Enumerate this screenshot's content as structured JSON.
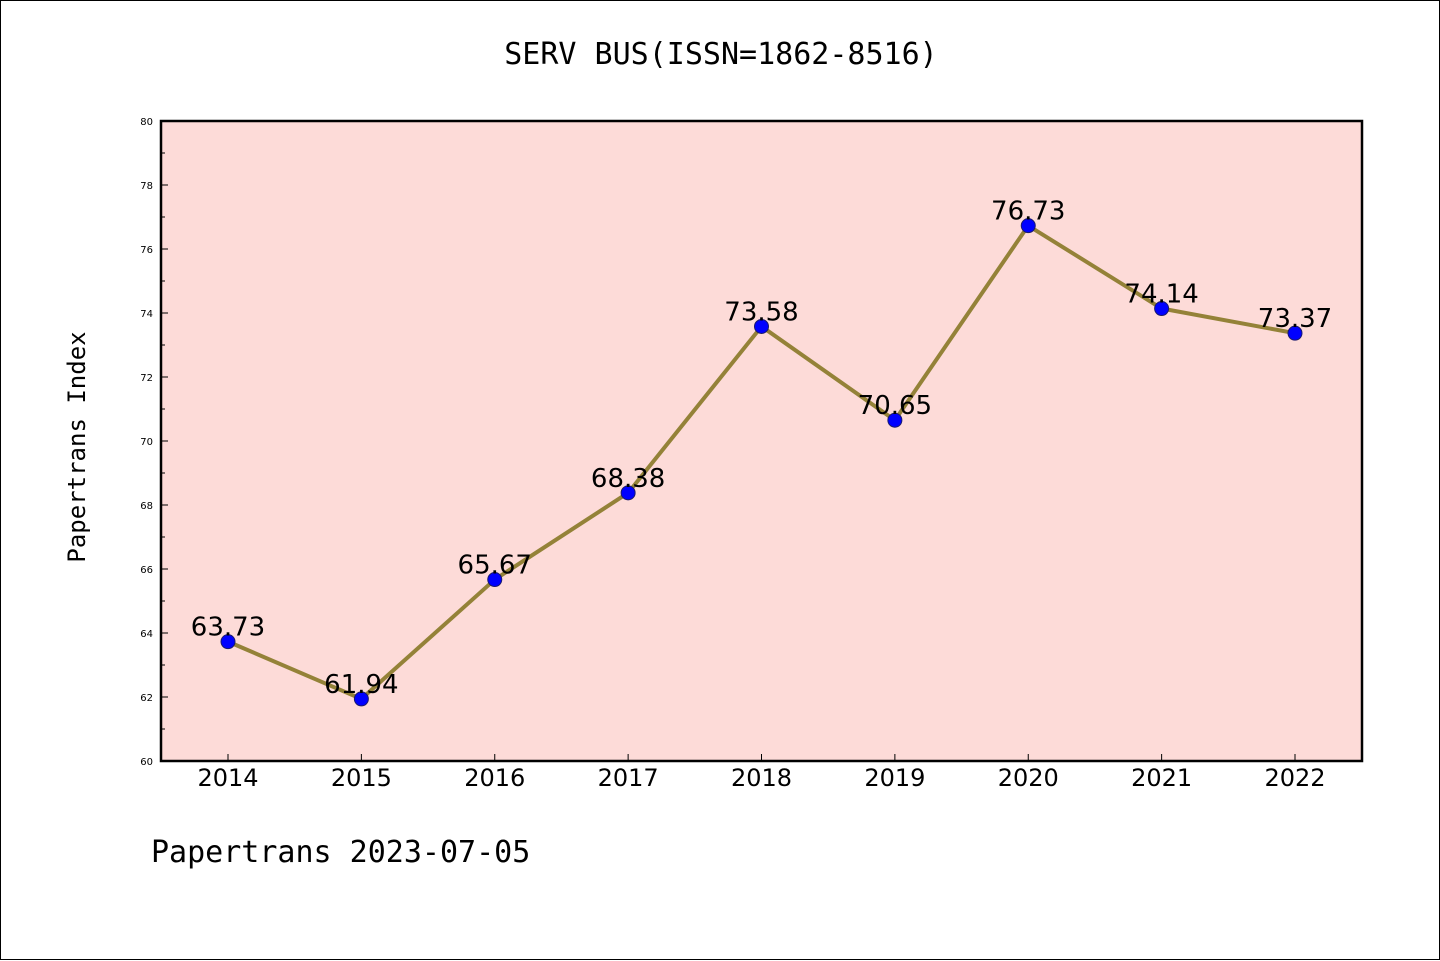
{
  "chart_data": {
    "type": "line",
    "title": "SERV BUS(ISSN=1862-8516)",
    "xlabel": "",
    "ylabel": "Papertrans Index",
    "categories": [
      "2014",
      "2015",
      "2016",
      "2017",
      "2018",
      "2019",
      "2020",
      "2021",
      "2022"
    ],
    "values": [
      63.73,
      61.94,
      65.67,
      68.38,
      73.58,
      70.65,
      76.73,
      74.14,
      73.37
    ],
    "data_labels": [
      "63.73",
      "61.94",
      "65.67",
      "68.38",
      "73.58",
      "70.65",
      "76.73",
      "74.14",
      "73.37"
    ],
    "ylim": [
      60,
      80
    ],
    "yticks": [
      60,
      62,
      64,
      66,
      68,
      70,
      72,
      74,
      76,
      78,
      80
    ],
    "grid": false,
    "legend": "none",
    "colors": {
      "plot_background": "#fddbd8",
      "line": "#948238",
      "marker": "#0000ff"
    }
  },
  "footer": {
    "note": "Papertrans 2023-07-05"
  }
}
